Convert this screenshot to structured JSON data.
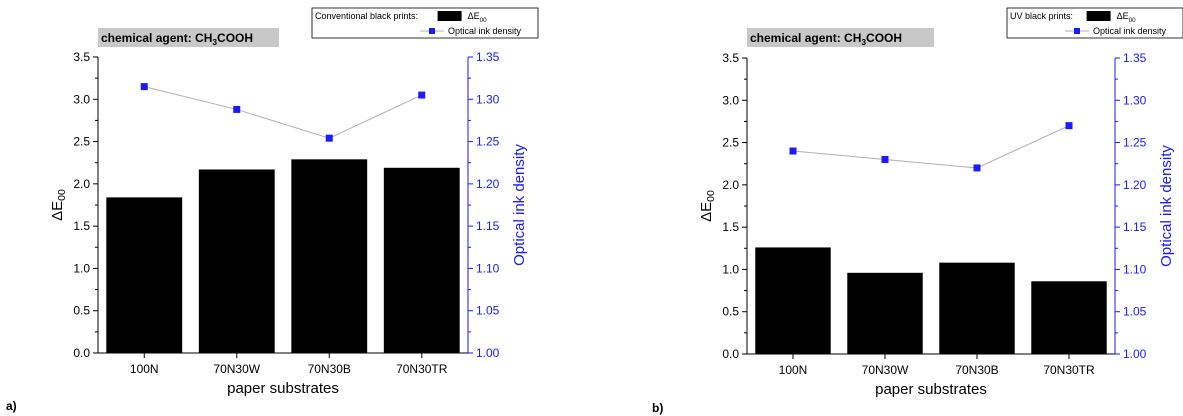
{
  "chart_data": [
    {
      "type": "bar",
      "panel_label": "a)",
      "badge": "chemical agent: CH3COOH",
      "badge_parts": {
        "pre": "chemical agent: CH",
        "sub1": "3",
        "post": "COOH"
      },
      "categories": [
        "100N",
        "70N30W",
        "70N30B",
        "70N30TR"
      ],
      "xlabel": "paper substrates",
      "ylabel_parts": {
        "main": "ΔE",
        "sub": "00"
      },
      "ylabel_right": "Optical ink density",
      "ylim": [
        0,
        3.5
      ],
      "y_ticks": [
        "0.0",
        "0.5",
        "1.0",
        "1.5",
        "2.0",
        "2.5",
        "3.0",
        "3.5"
      ],
      "ylim_right": [
        1.0,
        1.35
      ],
      "y_ticks_right": [
        "1.00",
        "1.05",
        "1.10",
        "1.15",
        "1.20",
        "1.25",
        "1.30",
        "1.35"
      ],
      "legend_title": "Conventional black prints:",
      "legend_bar_parts": {
        "main": "ΔE",
        "sub": "00"
      },
      "legend_line": "Optical ink density",
      "series": [
        {
          "name": "ΔE00",
          "kind": "bar",
          "axis": "left",
          "color": "#000000",
          "values": [
            1.84,
            2.17,
            2.29,
            2.19
          ]
        },
        {
          "name": "Optical ink density",
          "kind": "line",
          "axis": "right",
          "color": "#1a1aff",
          "line_color": "#b0b0b0",
          "values": [
            1.315,
            1.288,
            1.254,
            1.305
          ]
        }
      ]
    },
    {
      "type": "bar",
      "panel_label": "b)",
      "badge": "chemical agent: CH3COOH",
      "badge_parts": {
        "pre": "chemical agent: CH",
        "sub1": "3",
        "post": "COOH"
      },
      "categories": [
        "100N",
        "70N30W",
        "70N30B",
        "70N30TR"
      ],
      "xlabel": "paper substrates",
      "ylabel_parts": {
        "main": "ΔE",
        "sub": "00"
      },
      "ylabel_right": "Optical ink density",
      "ylim": [
        0,
        3.5
      ],
      "y_ticks": [
        "0.0",
        "0.5",
        "1.0",
        "1.5",
        "2.0",
        "2.5",
        "3.0",
        "3.5"
      ],
      "ylim_right": [
        1.0,
        1.35
      ],
      "y_ticks_right": [
        "1.00",
        "1.05",
        "1.10",
        "1.15",
        "1.20",
        "1.25",
        "1.30",
        "1.35"
      ],
      "legend_title": "UV black prints:",
      "legend_bar_parts": {
        "main": "ΔE",
        "sub": "00"
      },
      "legend_line": "Optical ink density",
      "series": [
        {
          "name": "ΔE00",
          "kind": "bar",
          "axis": "left",
          "color": "#000000",
          "values": [
            1.26,
            0.96,
            1.08,
            0.86
          ]
        },
        {
          "name": "Optical ink density",
          "kind": "line",
          "axis": "right",
          "color": "#1a1aff",
          "line_color": "#b0b0b0",
          "values": [
            1.24,
            1.23,
            1.22,
            1.27
          ]
        }
      ]
    }
  ]
}
